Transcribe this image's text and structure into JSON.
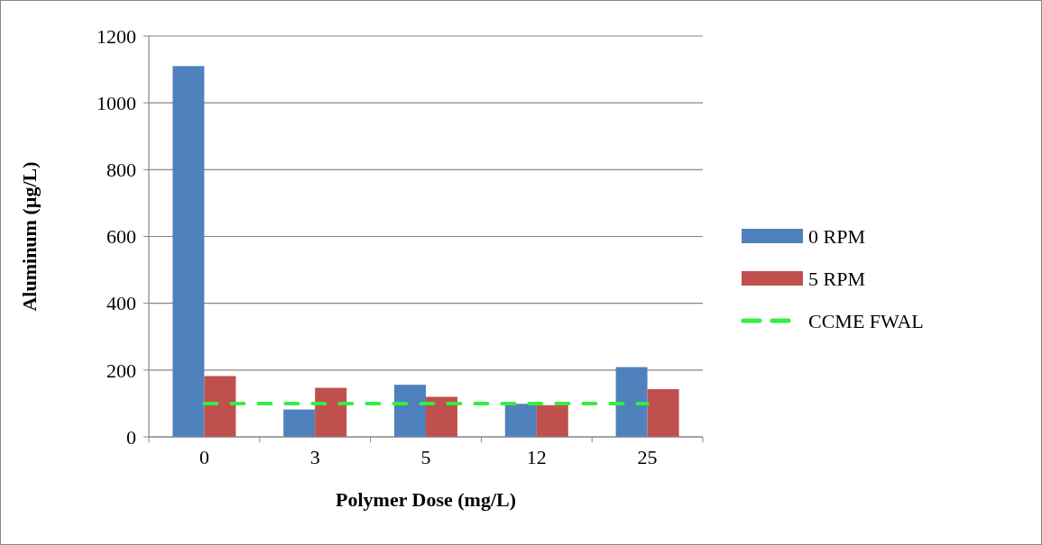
{
  "chart_data": {
    "type": "bar",
    "xlabel": "Polymer Dose (mg/L)",
    "ylabel": "Aluminum (µg/L)",
    "categories": [
      "0",
      "3",
      "5",
      "12",
      "25"
    ],
    "series": [
      {
        "name": "0 RPM",
        "color": "#4f81bd",
        "values": [
          1110,
          82,
          156,
          99,
          209
        ]
      },
      {
        "name": "5 RPM",
        "color": "#c0504d",
        "values": [
          182,
          147,
          120,
          95,
          143
        ]
      },
      {
        "name": "CCME FWAL",
        "type": "line",
        "color": "#33ee44",
        "line_style": "dashed",
        "values": [
          100,
          100,
          100,
          100,
          100
        ]
      }
    ],
    "ylim": [
      0,
      1200
    ],
    "yticks": [
      0,
      200,
      400,
      600,
      800,
      1000,
      1200
    ],
    "grid": "y",
    "legend": "right",
    "marker": "none"
  }
}
